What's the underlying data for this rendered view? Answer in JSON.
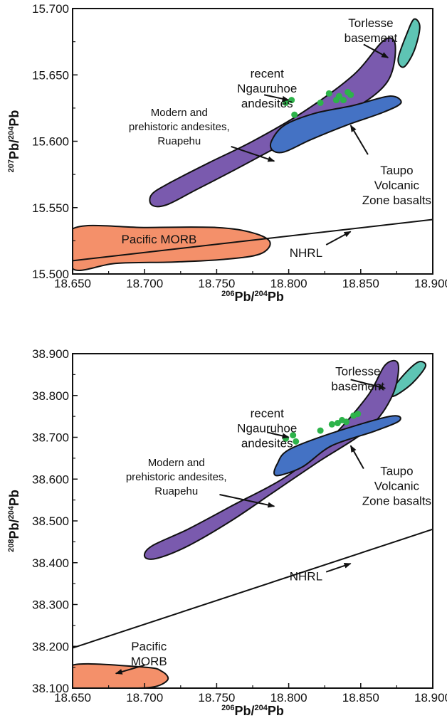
{
  "chart_data": [
    {
      "type": "scatter",
      "xlabel": {
        "sup": "206",
        "main": "Pb/",
        "sup2": "204",
        "main2": "Pb"
      },
      "ylabel": {
        "sup": "207",
        "main": "Pb/",
        "sup2": "204",
        "main2": "Pb"
      },
      "xlim": [
        18.65,
        18.9
      ],
      "ylim": [
        15.5,
        15.7
      ],
      "xticks": [
        "18.650",
        "18.700",
        "18.750",
        "18.800",
        "18.850",
        "18.900"
      ],
      "yticks": [
        "15.500",
        "15.550",
        "15.600",
        "15.650",
        "15.700"
      ],
      "colors": {
        "morb": "#f4906a",
        "purple": "#7a5aae",
        "blue": "#4472c4",
        "teal": "#5ec4b4",
        "points": "#2db34a"
      },
      "fields": {
        "morb": [
          [
            18.65,
            15.534
          ],
          [
            18.7,
            15.535
          ],
          [
            18.75,
            15.535
          ],
          [
            18.775,
            15.531
          ],
          [
            18.787,
            15.524
          ],
          [
            18.78,
            15.515
          ],
          [
            18.755,
            15.511
          ],
          [
            18.72,
            15.509
          ],
          [
            18.68,
            15.508
          ],
          [
            18.65,
            15.504
          ]
        ],
        "purple": [
          [
            18.705,
            15.56
          ],
          [
            18.718,
            15.569
          ],
          [
            18.745,
            15.584
          ],
          [
            18.775,
            15.6
          ],
          [
            18.81,
            15.622
          ],
          [
            18.845,
            15.65
          ],
          [
            18.866,
            15.676
          ],
          [
            18.874,
            15.672
          ],
          [
            18.868,
            15.644
          ],
          [
            18.84,
            15.621
          ],
          [
            18.8,
            15.6
          ],
          [
            18.76,
            15.577
          ],
          [
            18.735,
            15.563
          ],
          [
            18.715,
            15.552
          ],
          [
            18.705,
            15.552
          ]
        ],
        "blue": [
          [
            18.788,
            15.6
          ],
          [
            18.797,
            15.612
          ],
          [
            18.818,
            15.621
          ],
          [
            18.845,
            15.627
          ],
          [
            18.87,
            15.634
          ],
          [
            18.878,
            15.629
          ],
          [
            18.866,
            15.622
          ],
          [
            18.84,
            15.612
          ],
          [
            18.815,
            15.601
          ],
          [
            18.797,
            15.592
          ],
          [
            18.789,
            15.593
          ]
        ],
        "teal": [
          [
            18.876,
            15.662
          ],
          [
            18.882,
            15.681
          ],
          [
            18.887,
            15.692
          ],
          [
            18.891,
            15.686
          ],
          [
            18.887,
            15.668
          ],
          [
            18.88,
            15.656
          ]
        ]
      },
      "nhrl": [
        [
          18.65,
          15.51
        ],
        [
          18.9,
          15.541
        ]
      ],
      "points": [
        [
          18.798,
          15.629
        ],
        [
          18.802,
          15.631
        ],
        [
          18.804,
          15.62
        ],
        [
          18.822,
          15.629
        ],
        [
          18.828,
          15.636
        ],
        [
          18.833,
          15.631
        ],
        [
          18.835,
          15.634
        ],
        [
          18.838,
          15.631
        ],
        [
          18.841,
          15.637
        ],
        [
          18.843,
          15.635
        ]
      ],
      "annotations": [
        {
          "id": "torlesse",
          "lines": [
            "Torlesse",
            "basement"
          ],
          "text_at": [
            18.857,
            15.686
          ],
          "arrow": [
            [
              18.852,
              15.673
            ],
            [
              18.869,
              15.663
            ]
          ]
        },
        {
          "id": "ngauruhoe",
          "lines": [
            "recent",
            "Ngauruhoe",
            "andesites"
          ],
          "text_at": [
            18.785,
            15.648
          ],
          "arrow": [
            [
              18.783,
              15.635
            ],
            [
              18.8,
              15.631
            ]
          ]
        },
        {
          "id": "ruapehu",
          "lines": [
            "Modern and",
            "prehistoric andesites,",
            "Ruapehu"
          ],
          "text_at": [
            18.724,
            15.619
          ],
          "arrow": [
            [
              18.76,
              15.596
            ],
            [
              18.79,
              15.585
            ]
          ],
          "small": true
        },
        {
          "id": "taupo",
          "lines": [
            "Taupo",
            "Volcanic",
            "Zone basalts"
          ],
          "text_at": [
            18.875,
            15.575
          ],
          "arrow": [
            [
              18.855,
              15.59
            ],
            [
              18.843,
              15.612
            ]
          ]
        },
        {
          "id": "morb",
          "lines": [
            "Pacific MORB"
          ],
          "text_at": [
            18.71,
            15.523
          ],
          "arrow": null
        },
        {
          "id": "nhrl",
          "lines": [
            "NHRL"
          ],
          "text_at": [
            18.812,
            15.513
          ],
          "arrow": [
            [
              18.826,
              15.522
            ],
            [
              18.843,
              15.532
            ]
          ]
        }
      ]
    },
    {
      "type": "scatter",
      "xlabel": {
        "sup": "206",
        "main": "Pb/",
        "sup2": "204",
        "main2": "Pb"
      },
      "ylabel": {
        "sup": "208",
        "main": "Pb/",
        "sup2": "204",
        "main2": "Pb"
      },
      "xlim": [
        18.65,
        18.9
      ],
      "ylim": [
        38.1,
        38.9
      ],
      "xticks": [
        "18.650",
        "18.700",
        "18.750",
        "18.800",
        "18.850",
        "18.900"
      ],
      "yticks": [
        "38.100",
        "38.200",
        "38.300",
        "38.400",
        "38.500",
        "38.600",
        "38.700",
        "38.800",
        "38.900"
      ],
      "colors": {
        "morb": "#f4906a",
        "purple": "#7a5aae",
        "blue": "#4472c4",
        "teal": "#5ec4b4",
        "points": "#2db34a"
      },
      "fields": {
        "morb": [
          [
            18.65,
            38.155
          ],
          [
            18.7,
            38.15
          ],
          [
            18.712,
            38.14
          ],
          [
            18.716,
            38.12
          ],
          [
            18.705,
            38.102
          ],
          [
            18.68,
            38.1
          ],
          [
            18.65,
            38.101
          ]
        ],
        "purple": [
          [
            18.7,
            38.415
          ],
          [
            18.705,
            38.44
          ],
          [
            18.73,
            38.48
          ],
          [
            18.76,
            38.535
          ],
          [
            18.8,
            38.61
          ],
          [
            18.83,
            38.7
          ],
          [
            18.855,
            38.8
          ],
          [
            18.867,
            38.873
          ],
          [
            18.876,
            38.875
          ],
          [
            18.872,
            38.8
          ],
          [
            18.855,
            38.72
          ],
          [
            18.82,
            38.64
          ],
          [
            18.79,
            38.57
          ],
          [
            18.76,
            38.5
          ],
          [
            18.73,
            38.44
          ],
          [
            18.708,
            38.41
          ]
        ],
        "blue": [
          [
            18.792,
            38.636
          ],
          [
            18.8,
            38.67
          ],
          [
            18.83,
            38.71
          ],
          [
            18.87,
            38.75
          ],
          [
            18.877,
            38.74
          ],
          [
            18.86,
            38.715
          ],
          [
            18.83,
            38.68
          ],
          [
            18.81,
            38.63
          ],
          [
            18.795,
            38.61
          ],
          [
            18.79,
            38.612
          ]
        ],
        "teal": [
          [
            18.87,
            38.805
          ],
          [
            18.88,
            38.85
          ],
          [
            18.89,
            38.88
          ],
          [
            18.895,
            38.87
          ],
          [
            18.886,
            38.83
          ],
          [
            18.874,
            38.8
          ]
        ]
      },
      "nhrl": [
        [
          18.65,
          38.196
        ],
        [
          18.9,
          38.48
        ]
      ],
      "points": [
        [
          18.798,
          38.697
        ],
        [
          18.803,
          38.705
        ],
        [
          18.805,
          38.69
        ],
        [
          18.822,
          38.716
        ],
        [
          18.83,
          38.731
        ],
        [
          18.834,
          38.734
        ],
        [
          18.837,
          38.741
        ],
        [
          18.84,
          38.737
        ],
        [
          18.845,
          38.752
        ],
        [
          18.848,
          38.756
        ]
      ],
      "annotations": [
        {
          "id": "torlesse",
          "lines": [
            "Torlesse",
            "basement"
          ],
          "text_at": [
            18.848,
            38.848
          ],
          "arrow": [
            [
              18.843,
              38.838
            ],
            [
              18.867,
              38.817
            ]
          ]
        },
        {
          "id": "ngauruhoe",
          "lines": [
            "recent",
            "Ngauruhoe",
            "andesites"
          ],
          "text_at": [
            18.785,
            38.748
          ],
          "arrow": [
            [
              18.785,
              38.712
            ],
            [
              18.8,
              38.7
            ]
          ]
        },
        {
          "id": "ruapehu",
          "lines": [
            "Modern and",
            "prehistoric andesites,",
            "Ruapehu"
          ],
          "text_at": [
            18.722,
            38.631
          ],
          "arrow": [
            [
              18.752,
              38.563
            ],
            [
              18.79,
              38.535
            ]
          ],
          "small": true
        },
        {
          "id": "taupo",
          "lines": [
            "Taupo",
            "Volcanic",
            "Zone basalts"
          ],
          "text_at": [
            18.875,
            38.61
          ],
          "arrow": [
            [
              18.852,
              38.625
            ],
            [
              18.843,
              38.68
            ]
          ]
        },
        {
          "id": "morb",
          "lines": [
            "Pacific",
            "MORB"
          ],
          "text_at": [
            18.703,
            38.19
          ],
          "arrow": [
            [
              18.7,
              38.155
            ],
            [
              18.68,
              38.135
            ]
          ]
        },
        {
          "id": "nhrl",
          "lines": [
            "NHRL"
          ],
          "text_at": [
            18.812,
            38.358
          ],
          "arrow": [
            [
              18.826,
              38.378
            ],
            [
              18.843,
              38.398
            ]
          ]
        }
      ]
    }
  ]
}
